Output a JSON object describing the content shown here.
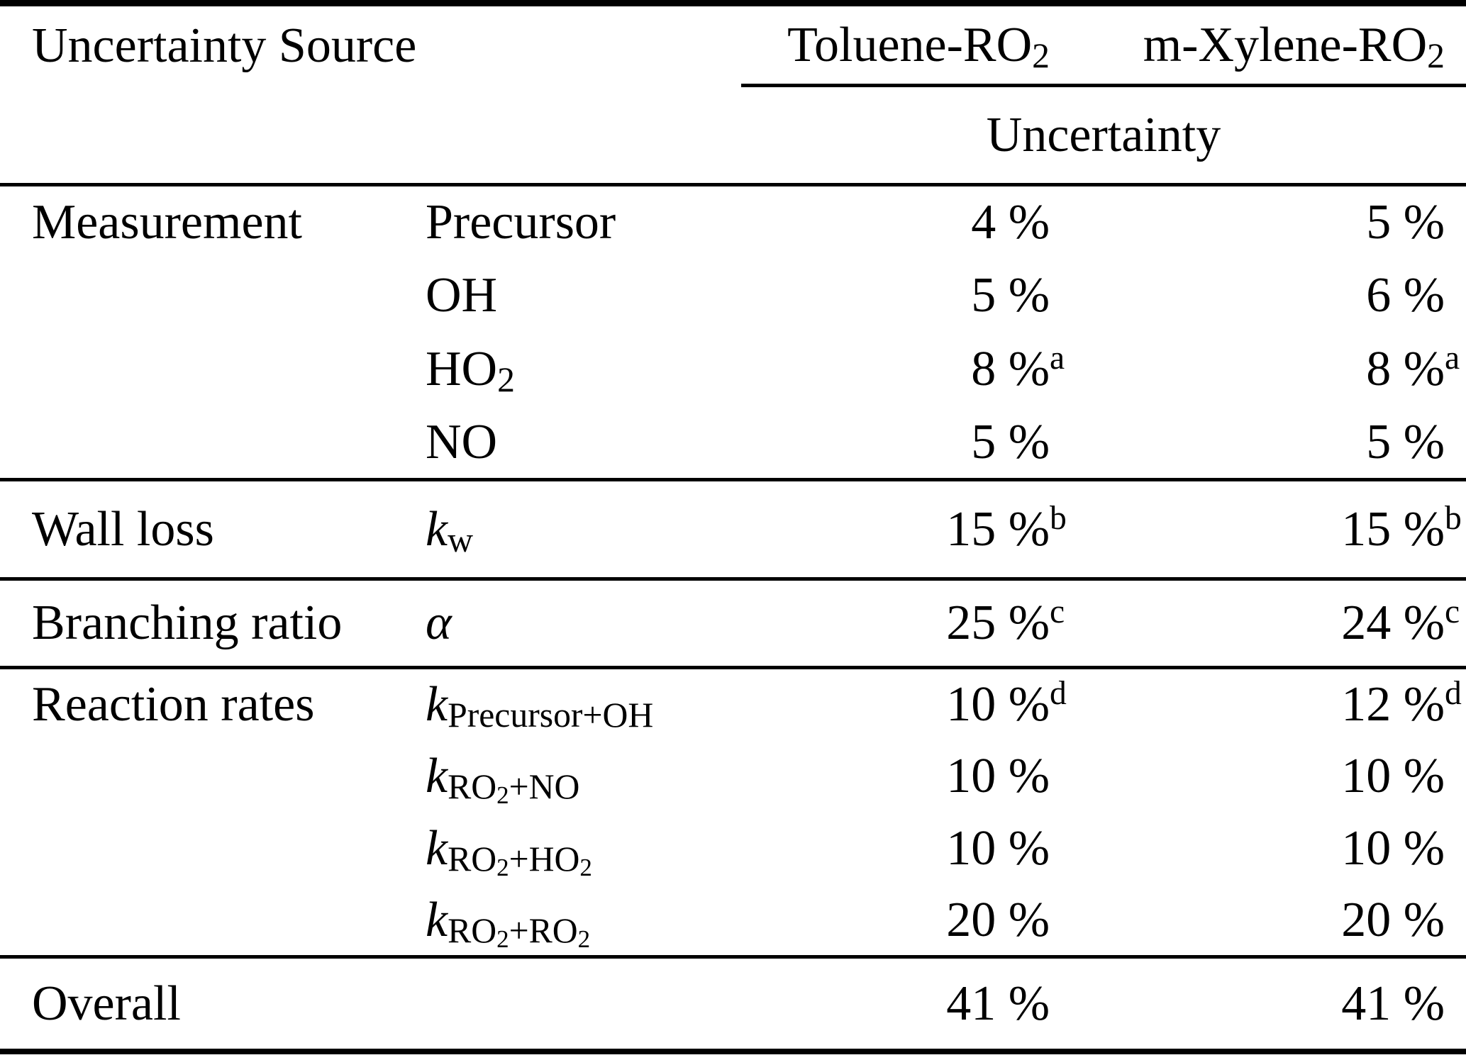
{
  "colors": {
    "text": "#000000",
    "background": "#ffffff"
  },
  "table": {
    "header": {
      "source_label": "Uncertainty Source",
      "toluene_segments": [
        {
          "t": "Toluene-RO"
        },
        {
          "t": "2",
          "s": "sub"
        }
      ],
      "mxylene_segments": [
        {
          "t": "m-Xylene-RO"
        },
        {
          "t": "2",
          "s": "sub"
        }
      ],
      "uncertainty_label": "Uncertainty"
    },
    "groups": [
      {
        "key": "measurement",
        "name": "Measurement",
        "end_rule": true,
        "rows": [
          {
            "param": [
              {
                "t": "Precursor"
              }
            ],
            "toluene": {
              "value": "4 %"
            },
            "mxylene": {
              "value": "5 %"
            }
          },
          {
            "param": [
              {
                "t": "OH"
              }
            ],
            "toluene": {
              "value": "5 %"
            },
            "mxylene": {
              "value": "6 %"
            }
          },
          {
            "param": [
              {
                "t": "HO"
              },
              {
                "t": "2",
                "s": "sub"
              }
            ],
            "toluene": {
              "value": "8 %",
              "note": "a"
            },
            "mxylene": {
              "value": "8 %",
              "note": "a"
            }
          },
          {
            "param": [
              {
                "t": "NO"
              }
            ],
            "toluene": {
              "value": "5 %"
            },
            "mxylene": {
              "value": "5 %"
            }
          }
        ]
      },
      {
        "key": "wall-loss",
        "name": "Wall loss",
        "end_rule": true,
        "rows": [
          {
            "param": [
              {
                "t": "k",
                "s": "italic"
              },
              {
                "t": "w",
                "s": "sub"
              }
            ],
            "toluene": {
              "value": "15 %",
              "note": "b"
            },
            "mxylene": {
              "value": "15 %",
              "note": "b"
            }
          }
        ]
      },
      {
        "key": "branching-ratio",
        "name": "Branching ratio",
        "end_rule": true,
        "rows": [
          {
            "param": [
              {
                "t": "α",
                "s": "italic"
              }
            ],
            "toluene": {
              "value": "25 %",
              "note": "c"
            },
            "mxylene": {
              "value": "24 %",
              "note": "c"
            }
          }
        ]
      },
      {
        "key": "reaction-rates",
        "name": "Reaction rates",
        "end_rule": true,
        "rows": [
          {
            "param": [
              {
                "t": "k",
                "s": "italic"
              },
              {
                "t": "Precursor+OH",
                "s": "sub"
              }
            ],
            "toluene": {
              "value": "10 %",
              "note": "d"
            },
            "mxylene": {
              "value": "12 %",
              "note": "d"
            }
          },
          {
            "param": [
              {
                "t": "k",
                "s": "italic"
              },
              {
                "t": "RO",
                "s": "sub"
              },
              {
                "t": "2",
                "s": "subsub"
              },
              {
                "t": "+NO",
                "s": "sub"
              }
            ],
            "toluene": {
              "value": "10 %"
            },
            "mxylene": {
              "value": "10 %"
            }
          },
          {
            "param": [
              {
                "t": "k",
                "s": "italic"
              },
              {
                "t": "RO",
                "s": "sub"
              },
              {
                "t": "2",
                "s": "subsub"
              },
              {
                "t": "+HO",
                "s": "sub"
              },
              {
                "t": "2",
                "s": "subsub"
              }
            ],
            "toluene": {
              "value": "10 %"
            },
            "mxylene": {
              "value": "10 %"
            }
          },
          {
            "param": [
              {
                "t": "k",
                "s": "italic"
              },
              {
                "t": "RO",
                "s": "sub"
              },
              {
                "t": "2",
                "s": "subsub"
              },
              {
                "t": "+RO",
                "s": "sub"
              },
              {
                "t": "2",
                "s": "subsub"
              }
            ],
            "toluene": {
              "value": "20 %"
            },
            "mxylene": {
              "value": "20 %"
            }
          }
        ]
      },
      {
        "key": "overall",
        "name": "Overall",
        "end_rule": false,
        "rows": [
          {
            "param": [],
            "toluene": {
              "value": "41 %"
            },
            "mxylene": {
              "value": "41 %"
            }
          }
        ]
      }
    ]
  }
}
